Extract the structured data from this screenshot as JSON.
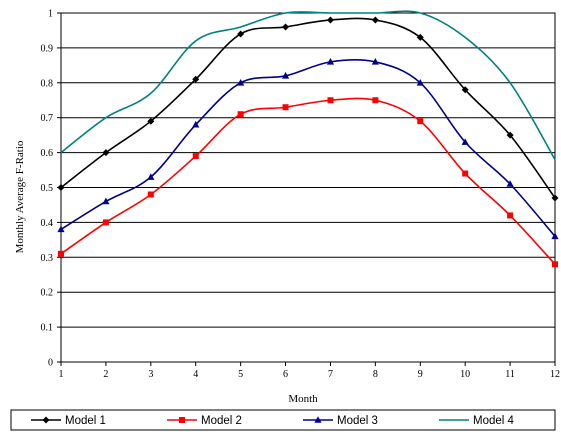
{
  "chart_data": {
    "type": "line",
    "title": "",
    "xlabel": "Month",
    "ylabel": "Monthly Average F-Ratio",
    "x": [
      1,
      2,
      3,
      4,
      5,
      6,
      7,
      8,
      9,
      10,
      11,
      12
    ],
    "xticks": [
      "1",
      "2",
      "3",
      "4",
      "5",
      "6",
      "7",
      "8",
      "9",
      "10",
      "11",
      "12"
    ],
    "yticks": [
      "0",
      "0.1",
      "0.2",
      "0.3",
      "0.4",
      "0.5",
      "0.6",
      "0.7",
      "0.8",
      "0.9",
      "1"
    ],
    "xlim": [
      1,
      12
    ],
    "ylim": [
      0,
      1
    ],
    "grid": "horizontal",
    "legend_position": "bottom",
    "series": [
      {
        "name": "Model 1",
        "color": "#000000",
        "marker": "diamond",
        "values": [
          0.5,
          0.6,
          0.69,
          0.81,
          0.94,
          0.96,
          0.98,
          0.98,
          0.93,
          0.78,
          0.65,
          0.47
        ]
      },
      {
        "name": "Model 2",
        "color": "#ff0000",
        "marker": "square",
        "values": [
          0.31,
          0.4,
          0.48,
          0.59,
          0.71,
          0.73,
          0.75,
          0.75,
          0.69,
          0.54,
          0.42,
          0.28
        ]
      },
      {
        "name": "Model 3",
        "color": "#00008b",
        "marker": "triangle",
        "values": [
          0.38,
          0.46,
          0.53,
          0.68,
          0.8,
          0.82,
          0.86,
          0.86,
          0.8,
          0.63,
          0.51,
          0.36
        ]
      },
      {
        "name": "Model 4",
        "color": "#008080",
        "marker": "none",
        "values": [
          0.6,
          0.7,
          0.77,
          0.92,
          0.96,
          1.0,
          1.0,
          1.0,
          1.0,
          0.93,
          0.8,
          0.58
        ]
      }
    ]
  }
}
